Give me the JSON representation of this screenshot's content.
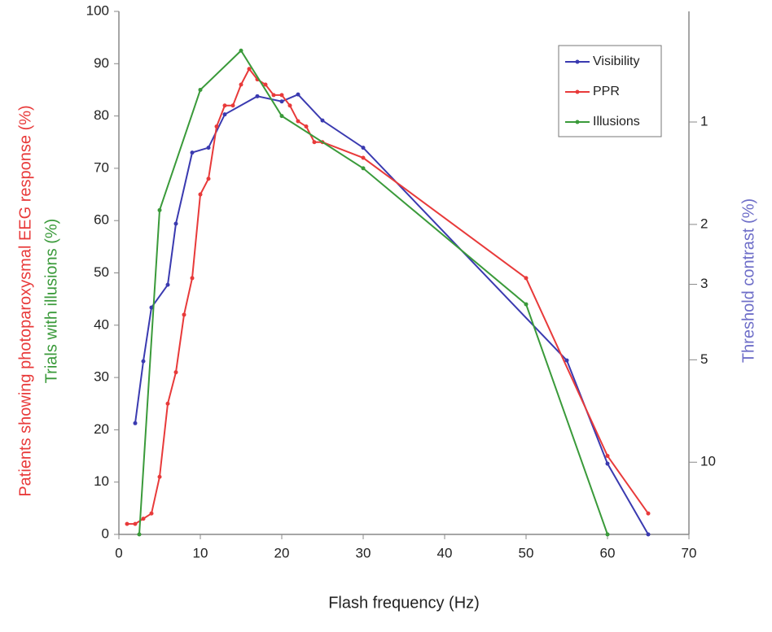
{
  "chart_data": {
    "type": "line",
    "x_label": "Flash frequency (Hz)",
    "y_labels": [
      {
        "text": "Patients showing photoparoxysmal EEG response (%)",
        "color": "#e83a3a"
      },
      {
        "text": "Trials with illusions (%)",
        "color": "#3a9a3a"
      }
    ],
    "y2_label": "Threshold contrast (%)",
    "y2_label_color": "#6e6ec8",
    "xlim": [
      0,
      70
    ],
    "xticks": [
      0,
      10,
      20,
      30,
      40,
      50,
      60,
      70
    ],
    "ylim": [
      0,
      100
    ],
    "yticks": [
      0,
      10,
      20,
      30,
      40,
      50,
      60,
      70,
      80,
      90,
      100
    ],
    "y2lim": [
      16.3,
      0.473
    ],
    "y2log": true,
    "y2ticks": [
      1,
      2,
      3,
      5,
      10
    ],
    "legend": "upper right",
    "series": [
      {
        "name": "Visibility",
        "color": "#3a3ab0",
        "axis": "y2",
        "x": [
          2,
          3,
          4,
          6,
          7,
          9,
          11,
          13,
          17,
          20,
          22,
          25,
          30,
          55,
          60,
          65
        ],
        "values": [
          7.68,
          5.05,
          3.51,
          3.01,
          1.99,
          1.23,
          1.19,
          0.95,
          0.84,
          0.87,
          0.83,
          0.99,
          1.19,
          5.02,
          10.1,
          16.3
        ]
      },
      {
        "name": "PPR",
        "color": "#e83a3a",
        "x": [
          1,
          2,
          3,
          4,
          5,
          6,
          7,
          8,
          9,
          10,
          11,
          12,
          13,
          14,
          15,
          16,
          17,
          18,
          19,
          20,
          21,
          22,
          23,
          24,
          25,
          30,
          50,
          60,
          65
        ],
        "values": [
          2,
          2,
          3,
          4,
          11,
          25,
          31,
          42,
          49,
          65,
          68,
          78,
          82,
          82,
          86,
          89,
          87,
          86,
          84,
          84,
          82,
          79,
          78,
          75,
          75,
          72,
          49,
          15,
          4
        ]
      },
      {
        "name": "Illusions",
        "color": "#3a9a3a",
        "x": [
          2.5,
          5,
          10,
          15,
          20,
          30,
          50,
          60
        ],
        "values": [
          0,
          62,
          85,
          92.5,
          80,
          70,
          44,
          0
        ]
      }
    ]
  }
}
